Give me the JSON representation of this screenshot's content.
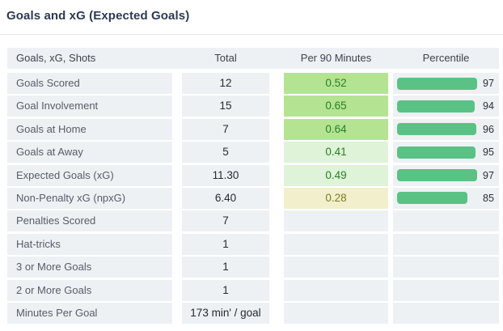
{
  "title": "Goals and xG (Expected Goals)",
  "table": {
    "headers": {
      "stat": "Goals, xG, Shots",
      "total": "Total",
      "per90": "Per 90 Minutes",
      "percentile": "Percentile"
    },
    "rows": [
      {
        "label": "Goals Scored",
        "total": "12",
        "per90": "0.52",
        "per90_tone": "green-strong",
        "percentile": 97
      },
      {
        "label": "Goal Involvement",
        "total": "15",
        "per90": "0.65",
        "per90_tone": "green-strong",
        "percentile": 94
      },
      {
        "label": "Goals at Home",
        "total": "7",
        "per90": "0.64",
        "per90_tone": "green-strong",
        "percentile": 96
      },
      {
        "label": "Goals at Away",
        "total": "5",
        "per90": "0.41",
        "per90_tone": "green-light",
        "percentile": 95
      },
      {
        "label": "Expected Goals (xG)",
        "total": "11.30",
        "per90": "0.49",
        "per90_tone": "green-light",
        "percentile": 97
      },
      {
        "label": "Non-Penalty xG (npxG)",
        "total": "6.40",
        "per90": "0.28",
        "per90_tone": "yellow",
        "percentile": 85
      },
      {
        "label": "Penalties Scored",
        "total": "7",
        "per90": null,
        "per90_tone": null,
        "percentile": null
      },
      {
        "label": "Hat-tricks",
        "total": "1",
        "per90": null,
        "per90_tone": null,
        "percentile": null
      },
      {
        "label": "3 or More Goals",
        "total": "1",
        "per90": null,
        "per90_tone": null,
        "percentile": null
      },
      {
        "label": "2 or More Goals",
        "total": "1",
        "per90": null,
        "per90_tone": null,
        "percentile": null
      },
      {
        "label": "Minutes Per Goal",
        "total": "173 min' / goal",
        "per90": null,
        "per90_tone": null,
        "percentile": null
      }
    ]
  },
  "colors": {
    "title_text": "#2d3a55",
    "cell_gray": "#eef1f4",
    "cell_green_strong": "#b4e491",
    "cell_green_light": "#def3d7",
    "cell_yellow": "#f2f0cc",
    "text_green": "#287e28",
    "text_olive": "#7d7a22",
    "percentile_bar_green": "#5ac284"
  }
}
